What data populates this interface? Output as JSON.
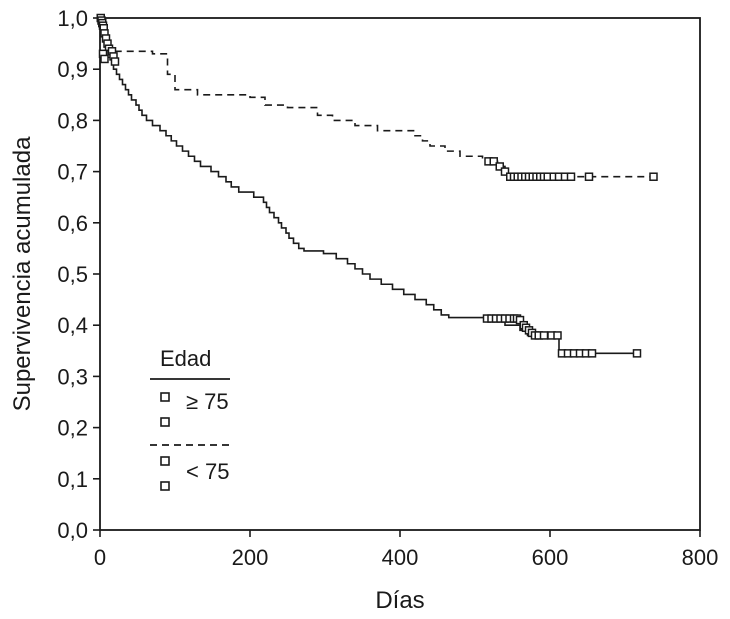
{
  "chart_data": {
    "type": "line",
    "subtype": "kaplan-meier",
    "title": "",
    "xlabel": "Días",
    "ylabel": "Supervivencia acumulada",
    "xlim": [
      0,
      800
    ],
    "ylim": [
      0.0,
      1.0
    ],
    "x_ticks": [
      "0",
      "200",
      "400",
      "600",
      "800"
    ],
    "y_ticks": [
      "0,0",
      "0,1",
      "0,2",
      "0,3",
      "0,4",
      "0,5",
      "0,6",
      "0,7",
      "0,8",
      "0,9",
      "1,0"
    ],
    "grid": false,
    "legend": {
      "title": "Edad",
      "placement": "bottom-left",
      "entries": [
        {
          "label": "≥ 75",
          "line": "solid",
          "marker": "square-open"
        },
        {
          "label": "< 75",
          "line": "dashed",
          "marker": "square-open"
        }
      ]
    },
    "series": [
      {
        "name": "≥ 75",
        "line": "solid",
        "steps": [
          [
            0,
            1.0
          ],
          [
            2,
            0.99
          ],
          [
            4,
            0.97
          ],
          [
            6,
            0.96
          ],
          [
            8,
            0.95
          ],
          [
            10,
            0.94
          ],
          [
            12,
            0.93
          ],
          [
            14,
            0.92
          ],
          [
            16,
            0.91
          ],
          [
            18,
            0.9
          ],
          [
            22,
            0.89
          ],
          [
            26,
            0.88
          ],
          [
            30,
            0.87
          ],
          [
            34,
            0.86
          ],
          [
            38,
            0.85
          ],
          [
            42,
            0.84
          ],
          [
            48,
            0.83
          ],
          [
            52,
            0.82
          ],
          [
            56,
            0.81
          ],
          [
            62,
            0.8
          ],
          [
            70,
            0.79
          ],
          [
            80,
            0.78
          ],
          [
            88,
            0.77
          ],
          [
            95,
            0.76
          ],
          [
            102,
            0.75
          ],
          [
            110,
            0.74
          ],
          [
            118,
            0.73
          ],
          [
            126,
            0.72
          ],
          [
            134,
            0.71
          ],
          [
            148,
            0.7
          ],
          [
            158,
            0.69
          ],
          [
            168,
            0.68
          ],
          [
            175,
            0.67
          ],
          [
            185,
            0.66
          ],
          [
            205,
            0.65
          ],
          [
            218,
            0.64
          ],
          [
            222,
            0.63
          ],
          [
            226,
            0.62
          ],
          [
            232,
            0.61
          ],
          [
            238,
            0.6
          ],
          [
            242,
            0.59
          ],
          [
            248,
            0.58
          ],
          [
            252,
            0.57
          ],
          [
            258,
            0.56
          ],
          [
            265,
            0.55
          ],
          [
            272,
            0.545
          ],
          [
            298,
            0.54
          ],
          [
            315,
            0.53
          ],
          [
            330,
            0.52
          ],
          [
            340,
            0.51
          ],
          [
            350,
            0.5
          ],
          [
            360,
            0.49
          ],
          [
            375,
            0.48
          ],
          [
            390,
            0.47
          ],
          [
            405,
            0.46
          ],
          [
            420,
            0.45
          ],
          [
            435,
            0.44
          ],
          [
            445,
            0.43
          ],
          [
            455,
            0.42
          ],
          [
            465,
            0.415
          ],
          [
            515,
            0.41
          ],
          [
            540,
            0.4
          ],
          [
            560,
            0.39
          ],
          [
            570,
            0.38
          ],
          [
            612,
            0.345
          ]
        ],
        "end_x": 716,
        "censored": [
          [
            516,
            0.413
          ],
          [
            522,
            0.413
          ],
          [
            528,
            0.413
          ],
          [
            534,
            0.413
          ],
          [
            540,
            0.413
          ],
          [
            546,
            0.413
          ],
          [
            552,
            0.413
          ],
          [
            556,
            0.413
          ],
          [
            560,
            0.41
          ],
          [
            565,
            0.4
          ],
          [
            568,
            0.395
          ],
          [
            572,
            0.39
          ],
          [
            576,
            0.385
          ],
          [
            580,
            0.38
          ],
          [
            585,
            0.38
          ],
          [
            592,
            0.38
          ],
          [
            602,
            0.38
          ],
          [
            610,
            0.38
          ],
          [
            616,
            0.345
          ],
          [
            624,
            0.345
          ],
          [
            632,
            0.345
          ],
          [
            640,
            0.345
          ],
          [
            648,
            0.345
          ],
          [
            656,
            0.345
          ],
          [
            716,
            0.345
          ]
        ]
      },
      {
        "name": "< 75",
        "line": "dashed",
        "steps": [
          [
            0,
            1.0
          ],
          [
            2,
            0.98
          ],
          [
            4,
            0.97
          ],
          [
            6,
            0.96
          ],
          [
            8,
            0.95
          ],
          [
            12,
            0.94
          ],
          [
            16,
            0.935
          ],
          [
            70,
            0.93
          ],
          [
            90,
            0.89
          ],
          [
            100,
            0.86
          ],
          [
            130,
            0.85
          ],
          [
            200,
            0.845
          ],
          [
            220,
            0.83
          ],
          [
            250,
            0.825
          ],
          [
            290,
            0.81
          ],
          [
            310,
            0.8
          ],
          [
            340,
            0.79
          ],
          [
            370,
            0.78
          ],
          [
            420,
            0.77
          ],
          [
            430,
            0.76
          ],
          [
            440,
            0.75
          ],
          [
            460,
            0.74
          ],
          [
            480,
            0.73
          ],
          [
            510,
            0.72
          ],
          [
            530,
            0.71
          ],
          [
            540,
            0.7
          ],
          [
            545,
            0.69
          ]
        ],
        "end_x": 738,
        "censored": [
          [
            518,
            0.72
          ],
          [
            525,
            0.72
          ],
          [
            533,
            0.71
          ],
          [
            540,
            0.7
          ],
          [
            547,
            0.69
          ],
          [
            552,
            0.69
          ],
          [
            557,
            0.69
          ],
          [
            562,
            0.69
          ],
          [
            567,
            0.69
          ],
          [
            572,
            0.69
          ],
          [
            577,
            0.69
          ],
          [
            582,
            0.69
          ],
          [
            587,
            0.69
          ],
          [
            592,
            0.69
          ],
          [
            597,
            0.69
          ],
          [
            605,
            0.69
          ],
          [
            612,
            0.69
          ],
          [
            620,
            0.69
          ],
          [
            628,
            0.69
          ],
          [
            652,
            0.69
          ],
          [
            738,
            0.69
          ]
        ]
      },
      {
        "name": "early-drop-markers",
        "line": "none",
        "steps": [],
        "end_x": 0,
        "censored": [
          [
            1,
            1.0
          ],
          [
            2,
            0.995
          ],
          [
            3,
            0.99
          ],
          [
            4,
            0.985
          ],
          [
            5,
            0.98
          ],
          [
            6,
            0.97
          ],
          [
            8,
            0.96
          ],
          [
            10,
            0.95
          ],
          [
            12,
            0.94
          ],
          [
            14,
            0.93
          ],
          [
            16,
            0.935
          ],
          [
            18,
            0.925
          ],
          [
            20,
            0.915
          ],
          [
            4,
            0.93
          ],
          [
            6,
            0.92
          ]
        ]
      }
    ]
  }
}
